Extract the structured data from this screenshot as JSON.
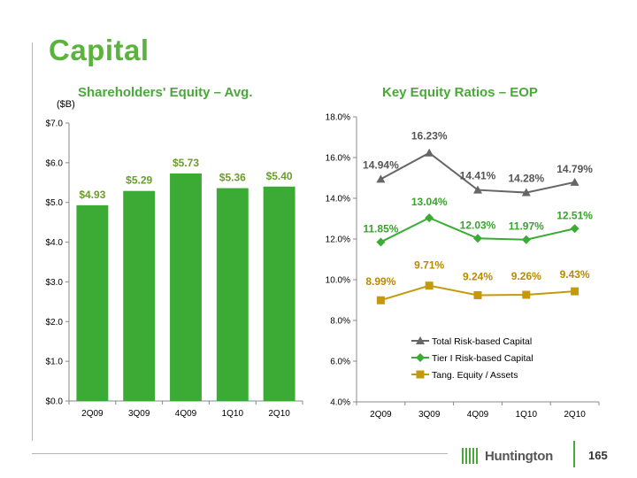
{
  "page": {
    "title": "Capital",
    "page_number": "165",
    "logo_text": "Huntington"
  },
  "chart_data": [
    {
      "type": "bar",
      "title": "Shareholders' Equity – Avg.",
      "unit_label": "($B)",
      "categories": [
        "2Q09",
        "3Q09",
        "4Q09",
        "1Q10",
        "2Q10"
      ],
      "values": [
        4.93,
        5.29,
        5.73,
        5.36,
        5.4
      ],
      "data_labels": [
        "$4.93",
        "$5.29",
        "$5.73",
        "$5.36",
        "$5.40"
      ],
      "ylim": [
        0,
        7
      ],
      "yticks": [
        0,
        1,
        2,
        3,
        4,
        5,
        6,
        7
      ],
      "ytick_labels": [
        "$0.0",
        "$1.0",
        "$2.0",
        "$3.0",
        "$4.0",
        "$5.0",
        "$6.0",
        "$7.0"
      ],
      "grid": false,
      "bar_color": "#3bab35",
      "label_color": "#6a9d2a"
    },
    {
      "type": "line",
      "title": "Key Equity Ratios – EOP",
      "categories": [
        "2Q09",
        "3Q09",
        "4Q09",
        "1Q10",
        "2Q10"
      ],
      "ylim": [
        4,
        18
      ],
      "yticks": [
        4,
        6,
        8,
        10,
        12,
        14,
        16,
        18
      ],
      "ytick_labels": [
        "4.0%",
        "6.0%",
        "8.0%",
        "10.0%",
        "12.0%",
        "14.0%",
        "16.0%",
        "18.0%"
      ],
      "grid": false,
      "legend_position": "lower-right",
      "series": [
        {
          "name": "Total Risk-based Capital",
          "values": [
            14.94,
            16.23,
            14.41,
            14.28,
            14.79
          ],
          "labels": [
            "14.94%",
            "16.23%",
            "14.41%",
            "14.28%",
            "14.79%"
          ],
          "color": "#666666",
          "label_color": "#555555",
          "marker": "triangle"
        },
        {
          "name": "Tier I Risk-based Capital",
          "values": [
            11.85,
            13.04,
            12.03,
            11.97,
            12.51
          ],
          "labels": [
            "11.85%",
            "13.04%",
            "12.03%",
            "11.97%",
            "12.51%"
          ],
          "color": "#3bab35",
          "label_color": "#3aa32f",
          "marker": "diamond"
        },
        {
          "name": "Tang. Equity / Assets",
          "values": [
            8.99,
            9.71,
            9.24,
            9.26,
            9.43
          ],
          "labels": [
            "8.99%",
            "9.71%",
            "9.24%",
            "9.26%",
            "9.43%"
          ],
          "color": "#c49a0c",
          "label_color": "#b88a00",
          "marker": "square"
        }
      ]
    }
  ]
}
